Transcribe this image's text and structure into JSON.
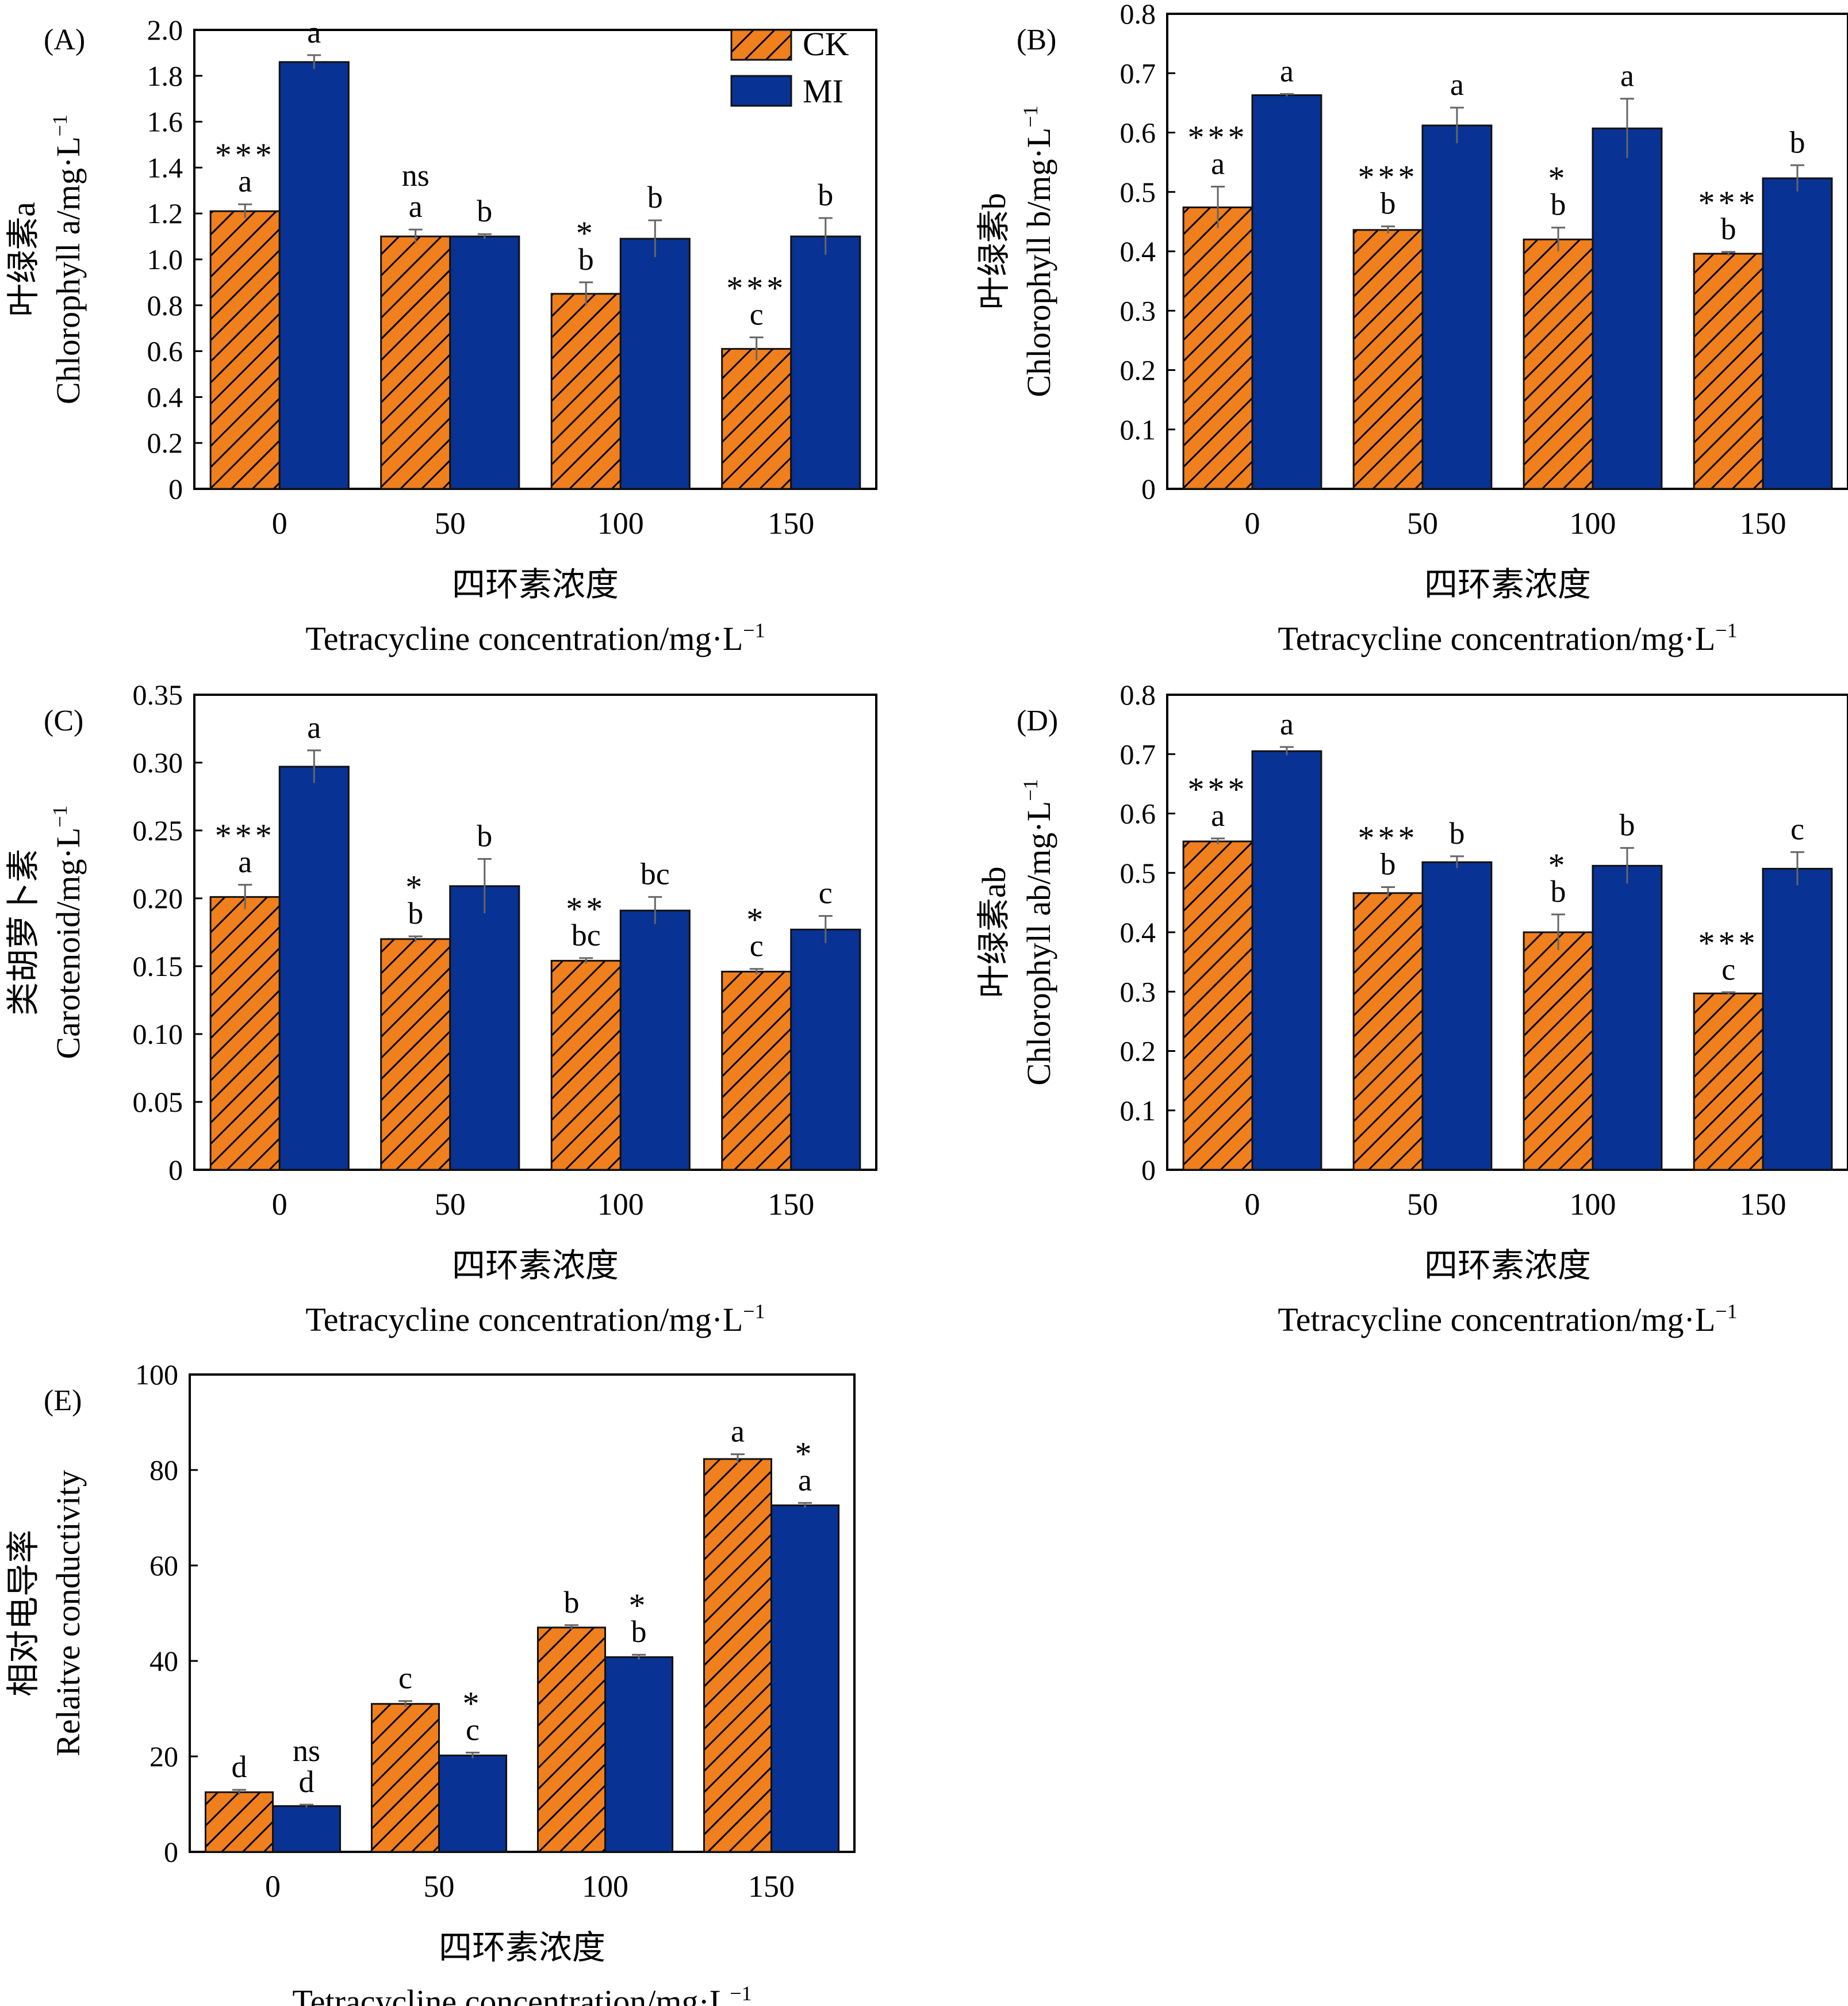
{
  "legend": {
    "ck_label": "CK",
    "mi_label": "MI"
  },
  "colors": {
    "ck": "#f07f1e",
    "mi": "#083293",
    "hatch": "#000000",
    "axis": "#000000"
  },
  "chart_data": [
    {
      "id": "A",
      "type": "bar",
      "panel_label": "(A)",
      "ylabel_cn": "叶绿素a",
      "ylabel_en": "Chlorophyll a/mg·L",
      "ylabel_sup": "−1",
      "xlabel_cn": "四环素浓度",
      "xlabel_en": "Tetracycline concentration/mg·L",
      "xlabel_sup": "−1",
      "ylim": [
        0,
        2.0
      ],
      "yticks": [
        "0",
        "0.2",
        "0.4",
        "0.6",
        "0.8",
        "1.0",
        "1.2",
        "1.4",
        "1.6",
        "1.8",
        "2.0"
      ],
      "categories": [
        "0",
        "50",
        "100",
        "150"
      ],
      "series": [
        {
          "name": "CK",
          "values": [
            1.21,
            1.1,
            0.85,
            0.61
          ],
          "errors": [
            0.03,
            0.03,
            0.05,
            0.05
          ],
          "letters": [
            "a",
            "a",
            "b",
            "c"
          ]
        },
        {
          "name": "MI",
          "values": [
            1.86,
            1.1,
            1.09,
            1.1
          ],
          "errors": [
            0.03,
            0.01,
            0.08,
            0.08
          ],
          "letters": [
            "a",
            "b",
            "b",
            "b"
          ]
        }
      ],
      "significance": [
        "***",
        "ns",
        "*",
        "***"
      ],
      "legend": true
    },
    {
      "id": "B",
      "type": "bar",
      "panel_label": "(B)",
      "ylabel_cn": "叶绿素b",
      "ylabel_en": "Chlorophyll b/mg·L",
      "ylabel_sup": "−1",
      "xlabel_cn": "四环素浓度",
      "xlabel_en": "Tetracycline concentration/mg·L",
      "xlabel_sup": "−1",
      "ylim": [
        0,
        0.8
      ],
      "yticks": [
        "0",
        "0.1",
        "0.2",
        "0.3",
        "0.4",
        "0.5",
        "0.6",
        "0.7",
        "0.8"
      ],
      "categories": [
        "0",
        "50",
        "100",
        "150"
      ],
      "series": [
        {
          "name": "CK",
          "values": [
            0.474,
            0.436,
            0.42,
            0.396
          ],
          "errors": [
            0.035,
            0.006,
            0.02,
            0.003
          ],
          "letters": [
            "a",
            "b",
            "b",
            "b"
          ]
        },
        {
          "name": "MI",
          "values": [
            0.663,
            0.612,
            0.607,
            0.523
          ],
          "errors": [
            0.002,
            0.03,
            0.05,
            0.022
          ],
          "letters": [
            "a",
            "a",
            "a",
            "b"
          ]
        }
      ],
      "significance": [
        "***",
        "***",
        "*",
        "***"
      ],
      "legend": false
    },
    {
      "id": "C",
      "type": "bar",
      "panel_label": "(C)",
      "ylabel_cn": "类胡萝卜素",
      "ylabel_en": "Carotenoid/mg·L",
      "ylabel_sup": "−1",
      "xlabel_cn": "四环素浓度",
      "xlabel_en": "Tetracycline concentration/mg·L",
      "xlabel_sup": "−1",
      "ylim": [
        0,
        0.35
      ],
      "yticks": [
        "0",
        "0.05",
        "0.10",
        "0.15",
        "0.20",
        "0.25",
        "0.30",
        "0.35"
      ],
      "categories": [
        "0",
        "50",
        "100",
        "150"
      ],
      "series": [
        {
          "name": "CK",
          "values": [
            0.201,
            0.17,
            0.154,
            0.146
          ],
          "errors": [
            0.009,
            0.002,
            0.002,
            0.002
          ],
          "letters": [
            "a",
            "b",
            "bc",
            "c"
          ]
        },
        {
          "name": "MI",
          "values": [
            0.297,
            0.209,
            0.191,
            0.177
          ],
          "errors": [
            0.012,
            0.02,
            0.01,
            0.01
          ],
          "letters": [
            "a",
            "b",
            "bc",
            "c"
          ]
        }
      ],
      "significance": [
        "***",
        "*",
        "**",
        "*"
      ],
      "legend": false
    },
    {
      "id": "D",
      "type": "bar",
      "panel_label": "(D)",
      "ylabel_cn": "叶绿素ab",
      "ylabel_en": "Chlorophyll ab/mg·L",
      "ylabel_sup": "−1",
      "xlabel_cn": "四环素浓度",
      "xlabel_en": "Tetracycline concentration/mg·L",
      "xlabel_sup": "−1",
      "ylim": [
        0,
        0.8
      ],
      "yticks": [
        "0",
        "0.1",
        "0.2",
        "0.3",
        "0.4",
        "0.5",
        "0.6",
        "0.7",
        "0.8"
      ],
      "categories": [
        "0",
        "50",
        "100",
        "150"
      ],
      "series": [
        {
          "name": "CK",
          "values": [
            0.553,
            0.466,
            0.4,
            0.297
          ],
          "errors": [
            0.005,
            0.01,
            0.03,
            0.002
          ],
          "letters": [
            "a",
            "b",
            "b",
            "c"
          ]
        },
        {
          "name": "MI",
          "values": [
            0.705,
            0.518,
            0.512,
            0.507
          ],
          "errors": [
            0.007,
            0.01,
            0.03,
            0.028
          ],
          "letters": [
            "a",
            "b",
            "b",
            "c"
          ]
        }
      ],
      "significance": [
        "***",
        "***",
        "*",
        "***"
      ],
      "legend": false
    },
    {
      "id": "E",
      "type": "bar",
      "panel_label": "(E)",
      "ylabel_cn": "相对电导率",
      "ylabel_en": "Relaitve conductivity",
      "ylabel_sup": "",
      "xlabel_cn": "四环素浓度",
      "xlabel_en": "Tetracycline concentration/mg·L",
      "xlabel_sup": "−1",
      "ylim": [
        0,
        100
      ],
      "yticks": [
        "0",
        "20",
        "40",
        "60",
        "80",
        "100"
      ],
      "categories": [
        "0",
        "50",
        "100",
        "150"
      ],
      "series": [
        {
          "name": "CK",
          "values": [
            12.5,
            31,
            47,
            82.3
          ],
          "errors": [
            0.5,
            0.6,
            0.5,
            1.0
          ],
          "letters": [
            "d",
            "c",
            "b",
            "a"
          ]
        },
        {
          "name": "MI",
          "values": [
            9.6,
            20.2,
            40.8,
            72.6
          ],
          "errors": [
            0.3,
            0.6,
            0.5,
            0.5
          ],
          "letters": [
            "d",
            "c",
            "b",
            "a"
          ]
        }
      ],
      "significance": [
        "ns",
        "*",
        "*",
        "*"
      ],
      "legend": false
    }
  ]
}
